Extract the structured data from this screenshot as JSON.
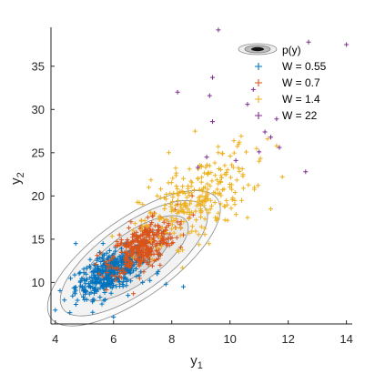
{
  "chart_data": {
    "type": "scatter",
    "xlabel": "y",
    "xlabel_sub": "1",
    "ylabel": "y",
    "ylabel_sub": "2",
    "xlim": [
      3.85,
      14.2
    ],
    "ylim": [
      5.2,
      39.5
    ],
    "xticks": [
      "4",
      "6",
      "8",
      "10",
      "12",
      "14"
    ],
    "yticks": [
      "10",
      "15",
      "20",
      "25",
      "30",
      "35"
    ],
    "xtick_values": [
      4,
      6,
      8,
      10,
      12,
      14
    ],
    "ytick_values": [
      10,
      15,
      20,
      25,
      30,
      35
    ],
    "grid": false,
    "legend_position": "top-right",
    "density": {
      "label": "p(y)",
      "center": [
        6.7,
        12.8
      ],
      "sd": [
        1.1,
        2.9
      ],
      "correlation": 0.72,
      "contour_levels_sigma": [
        0.6,
        1.1,
        1.7,
        2.3,
        2.7
      ],
      "contour_color": "#888888"
    },
    "series": [
      {
        "name": "W = 0.55",
        "color": "#0072BD",
        "marker": "+",
        "n": 420,
        "mean": [
          5.9,
          11.2
        ],
        "sd": [
          0.6,
          1.4
        ],
        "correlation": 0.6,
        "sample_points": [
          [
            4.0,
            6.8
          ],
          [
            4.5,
            6.5
          ],
          [
            4.7,
            14.5
          ],
          [
            5.0,
            8.0
          ],
          [
            5.2,
            9.5
          ],
          [
            5.5,
            10.5
          ],
          [
            5.6,
            7.5
          ],
          [
            5.8,
            12.0
          ],
          [
            6.0,
            11.0
          ],
          [
            6.0,
            6.0
          ],
          [
            6.2,
            13.0
          ],
          [
            6.4,
            11.5
          ],
          [
            6.5,
            8.5
          ],
          [
            6.8,
            12.5
          ],
          [
            7.0,
            10.0
          ],
          [
            7.2,
            13.5
          ],
          [
            7.5,
            11.0
          ],
          [
            7.6,
            14.5
          ],
          [
            7.8,
            9.8
          ],
          [
            8.4,
            9.5
          ]
        ]
      },
      {
        "name": "W = 0.7",
        "color": "#D95319",
        "marker": "+",
        "n": 340,
        "mean": [
          7.0,
          14.2
        ],
        "sd": [
          0.55,
          1.5
        ],
        "correlation": 0.55,
        "sample_points": [
          [
            5.5,
            11.0
          ],
          [
            6.0,
            13.0
          ],
          [
            6.2,
            15.5
          ],
          [
            6.4,
            12.5
          ],
          [
            6.6,
            17.0
          ],
          [
            6.8,
            14.0
          ],
          [
            7.0,
            13.5
          ],
          [
            7.2,
            15.5
          ],
          [
            7.4,
            18.0
          ],
          [
            7.6,
            12.0
          ],
          [
            7.8,
            16.0
          ],
          [
            8.0,
            14.5
          ],
          [
            8.2,
            19.0
          ],
          [
            8.4,
            15.5
          ],
          [
            8.6,
            17.5
          ],
          [
            8.7,
            20.0
          ]
        ]
      },
      {
        "name": "W = 1.4",
        "color": "#EDB120",
        "marker": "+",
        "n": 260,
        "mean": [
          8.8,
          19.5
        ],
        "sd": [
          0.95,
          2.8
        ],
        "correlation": 0.6,
        "sample_points": [
          [
            7.0,
            16.5
          ],
          [
            7.5,
            20.0
          ],
          [
            7.9,
            25.0
          ],
          [
            8.0,
            17.5
          ],
          [
            8.4,
            22.0
          ],
          [
            8.8,
            27.5
          ],
          [
            9.0,
            19.0
          ],
          [
            9.3,
            23.5
          ],
          [
            9.6,
            18.0
          ],
          [
            10.0,
            21.0
          ],
          [
            10.3,
            26.0
          ],
          [
            10.6,
            17.5
          ],
          [
            11.0,
            24.0
          ],
          [
            11.4,
            18.5
          ],
          [
            11.6,
            25.8
          ],
          [
            11.8,
            22.2
          ]
        ]
      },
      {
        "name": "W =   22",
        "color": "#7E2F8E",
        "marker": "+",
        "n": 18,
        "points": [
          [
            9.6,
            39.2
          ],
          [
            12.7,
            37.8
          ],
          [
            14.0,
            37.5
          ],
          [
            9.4,
            33.7
          ],
          [
            10.8,
            32.3
          ],
          [
            8.2,
            32.0
          ],
          [
            9.3,
            31.6
          ],
          [
            10.6,
            30.6
          ],
          [
            9.4,
            28.6
          ],
          [
            11.2,
            27.4
          ],
          [
            11.4,
            26.8
          ],
          [
            11.7,
            25.6
          ],
          [
            9.2,
            24.5
          ],
          [
            10.2,
            24.1
          ],
          [
            12.6,
            22.8
          ],
          [
            8.9,
            23.3
          ],
          [
            11.6,
            28.9
          ],
          [
            11.0,
            25.1
          ]
        ]
      }
    ]
  }
}
